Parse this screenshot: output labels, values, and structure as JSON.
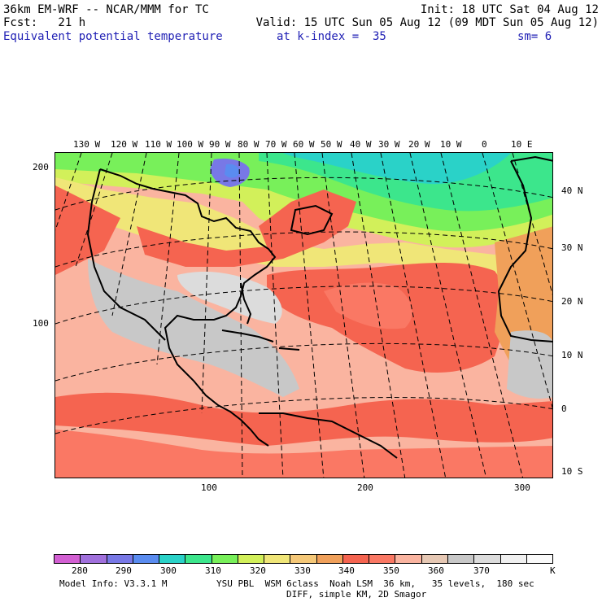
{
  "header": {
    "line1_left": "36km EM-WRF -- NCAR/MMM for TC",
    "line1_right": "Init: 18 UTC Sat 04 Aug 12",
    "line2_left": "Fcst:   21 h",
    "line2_right": "Valid: 15 UTC Sun 05 Aug 12 (09 MDT Sun 05 Aug 12)",
    "line3_field": "Equivalent potential temperature",
    "line3_level": "at k-index =  35",
    "line3_sm": "sm= 6"
  },
  "map": {
    "lon_labels": [
      "130 W",
      "120 W",
      "110 W",
      "100 W",
      "90 W",
      "80 W",
      "70 W",
      "60 W",
      "50 W",
      "40 W",
      "30 W",
      "20 W",
      "10 W",
      "0",
      "10 E"
    ],
    "lat_labels": [
      "40 N",
      "30 N",
      "20 N",
      "10 N",
      "0",
      "10 S"
    ],
    "grid_y_labels": [
      "200",
      "100"
    ],
    "grid_x_labels": [
      "100",
      "200",
      "300"
    ]
  },
  "colorbar": {
    "ticks": [
      "280",
      "290",
      "300",
      "310",
      "320",
      "330",
      "340",
      "350",
      "360",
      "370"
    ],
    "unit": "K",
    "colors": [
      "#d25fd2",
      "#a070dc",
      "#7878e6",
      "#5a8cf0",
      "#2ad2c8",
      "#3ce68c",
      "#78f05a",
      "#d2f05a",
      "#f0e678",
      "#f5c878",
      "#f0a05a",
      "#f56450",
      "#fa7864",
      "#fab4a0",
      "#e6c8b4",
      "#c8c8c8",
      "#dcdcdc",
      "#f0f0f0",
      "#fafafa"
    ]
  },
  "footer": {
    "model_info": "Model Info: V3.3.1 M",
    "physics": "YSU PBL  WSM 6class  Noah LSM  36 km,   35 levels,  180 sec",
    "diff": "DIFF, simple KM, 2D Smagor"
  }
}
